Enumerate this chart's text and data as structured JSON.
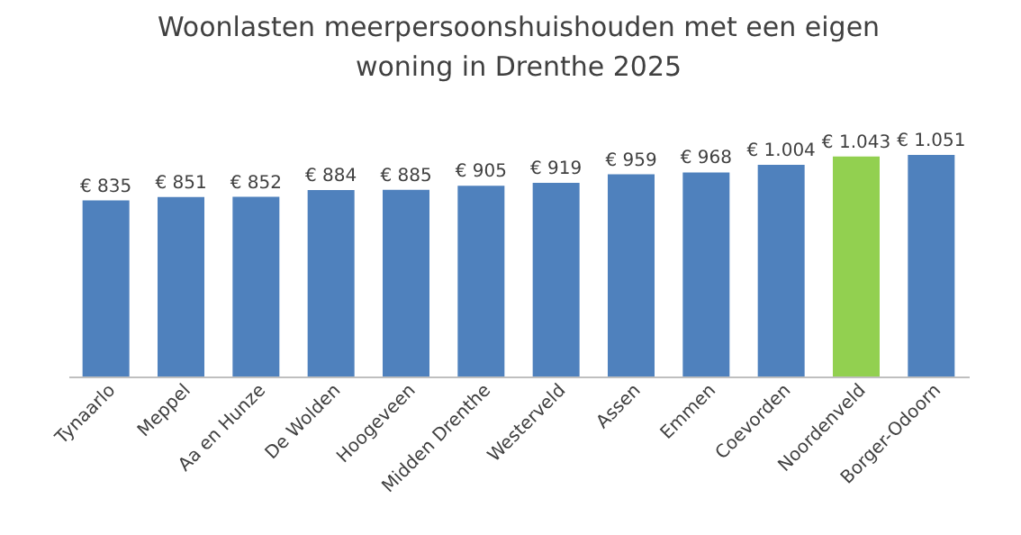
{
  "chart_data": {
    "type": "bar",
    "title": "Woonlasten meerpersoonshuishouden met een eigen woning in Drenthe 2025",
    "categories": [
      "Tynaarlo",
      "Meppel",
      "Aa en Hunze",
      "De Wolden",
      "Hoogeveen",
      "Midden Drenthe",
      "Westerveld",
      "Assen",
      "Emmen",
      "Coevorden",
      "Noordenveld",
      "Borger-Odoorn"
    ],
    "values": [
      835,
      851,
      852,
      884,
      885,
      905,
      919,
      959,
      968,
      1004,
      1043,
      1051
    ],
    "value_labels": [
      "€ 835",
      "€ 851",
      "€ 852",
      "€ 884",
      "€ 885",
      "€ 905",
      "€ 919",
      "€ 959",
      "€ 968",
      "€ 1.004",
      "€ 1.043",
      "€ 1.051"
    ],
    "colors": [
      "#4f81bd",
      "#4f81bd",
      "#4f81bd",
      "#4f81bd",
      "#4f81bd",
      "#4f81bd",
      "#4f81bd",
      "#4f81bd",
      "#4f81bd",
      "#4f81bd",
      "#92d050",
      "#4f81bd"
    ],
    "grid": false
  }
}
